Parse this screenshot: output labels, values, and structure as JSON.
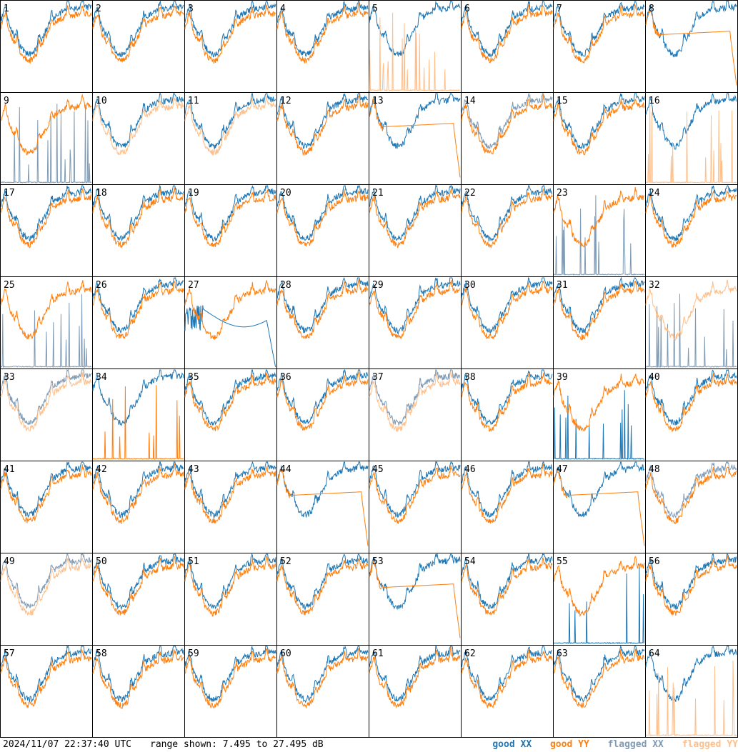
{
  "chart_data": {
    "type": "line",
    "layout": "8x8 small-multiples grid of spectra",
    "panel_labels": [
      "1",
      "2",
      "3",
      "4",
      "5",
      "6",
      "7",
      "8",
      "9",
      "10",
      "11",
      "12",
      "13",
      "14",
      "15",
      "16",
      "17",
      "18",
      "19",
      "20",
      "21",
      "22",
      "23",
      "24",
      "25",
      "26",
      "27",
      "28",
      "29",
      "30",
      "31",
      "32",
      "33",
      "34",
      "35",
      "36",
      "37",
      "38",
      "39",
      "40",
      "41",
      "42",
      "43",
      "44",
      "45",
      "46",
      "47",
      "48",
      "49",
      "50",
      "51",
      "52",
      "53",
      "54",
      "55",
      "56",
      "57",
      "58",
      "59",
      "60",
      "61",
      "62",
      "63",
      "64"
    ],
    "y_range_db": [
      7.495,
      27.495
    ],
    "grid": false,
    "legend_placement": "bottom-right",
    "series_colors": {
      "good_xx": "#1f77b4",
      "good_yy": "#ff7f0e",
      "flagged_xx": "#7f9bb5",
      "flagged_yy": "#ffbf8a"
    },
    "panel_status": {
      "5": {
        "xx": "good",
        "yy": "flagged",
        "yy_shape": "spikes"
      },
      "9": {
        "xx": "flagged",
        "yy": "good",
        "xx_shape": "spikes"
      },
      "10": {
        "xx": "good",
        "yy": "flagged"
      },
      "11": {
        "xx": "good",
        "yy": "flagged"
      },
      "14": {
        "xx": "flagged",
        "yy": "good"
      },
      "16": {
        "xx": "good",
        "yy": "flagged",
        "yy_shape": "spikes"
      },
      "23": {
        "xx": "flagged",
        "yy": "good",
        "xx_shape": "spikes"
      },
      "25": {
        "xx": "flagged",
        "yy": "good",
        "xx_shape": "spikes"
      },
      "27": {
        "xx": "good",
        "yy": "good",
        "xx_shape": "dip"
      },
      "32": {
        "xx": "flagged",
        "yy": "flagged",
        "xx_shape": "spikes"
      },
      "33": {
        "xx": "flagged",
        "yy": "flagged"
      },
      "34": {
        "xx": "good",
        "yy": "good",
        "yy_shape": "spikes"
      },
      "37": {
        "xx": "flagged",
        "yy": "flagged"
      },
      "39": {
        "xx": "good",
        "yy": "good",
        "xx_shape": "spikes"
      },
      "48": {
        "xx": "flagged",
        "yy": "good"
      },
      "49": {
        "xx": "flagged",
        "yy": "flagged"
      },
      "55": {
        "xx": "good",
        "yy": "good",
        "xx_shape": "spikes"
      },
      "64": {
        "xx": "good",
        "yy": "flagged",
        "yy_shape": "spikes"
      },
      "8": {
        "xx": "good",
        "yy": "good",
        "yy_shape": "flat"
      },
      "13": {
        "xx": "good",
        "yy": "good",
        "yy_shape": "flat"
      },
      "47": {
        "xx": "good",
        "yy": "good",
        "yy_shape": "flat"
      },
      "53": {
        "xx": "good",
        "yy": "good",
        "yy_shape": "flat"
      },
      "44": {
        "xx": "good",
        "yy": "good",
        "yy_shape": "flat"
      }
    }
  },
  "footer": {
    "timestamp": "2024/11/07 22:37:40 UTC",
    "range_text": "range shown: 7.495 to 27.495 dB"
  },
  "legend": {
    "good_xx": "good XX",
    "good_yy": "good YY",
    "flagged_xx": "flagged XX",
    "flagged_yy": "flagged YY"
  }
}
